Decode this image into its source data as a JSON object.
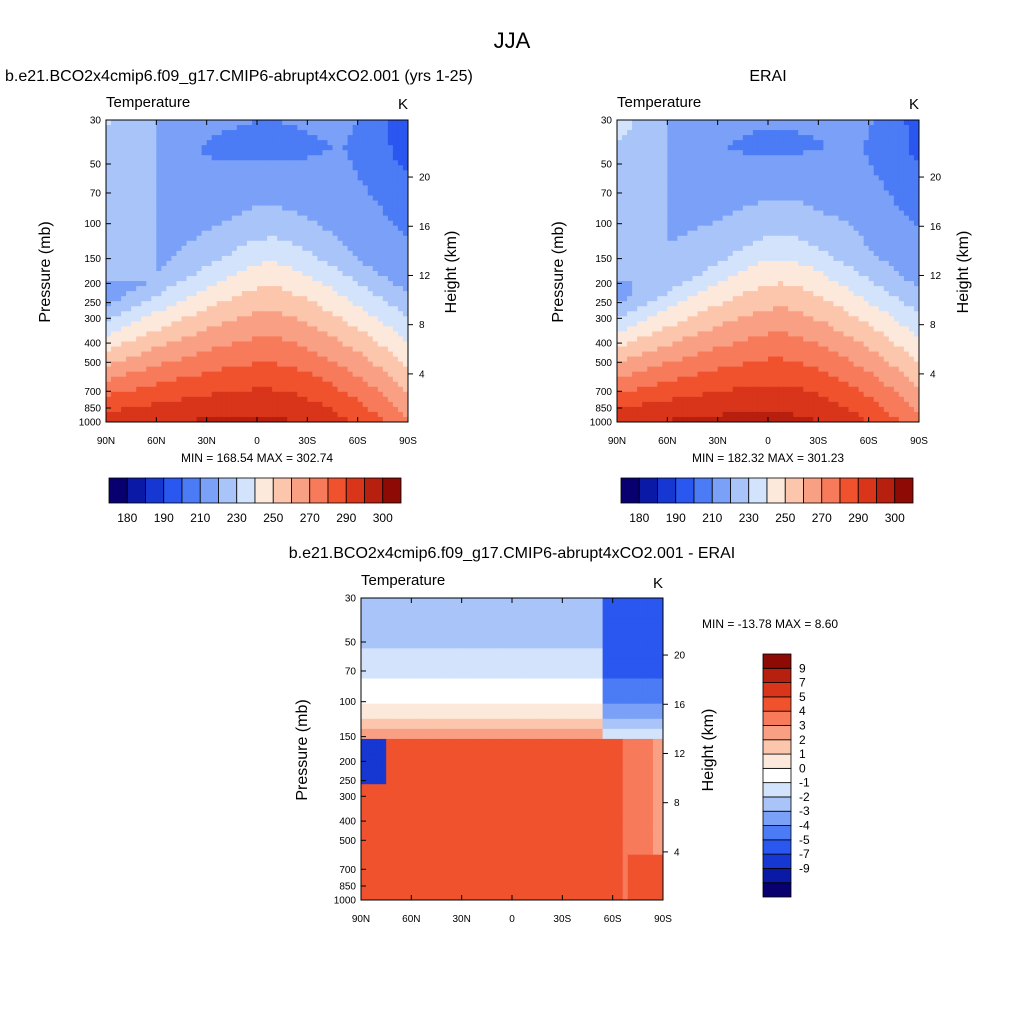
{
  "figure": {
    "title": "JJA"
  },
  "colors": {
    "palette": [
      "#08006e",
      "#0b1aa6",
      "#1637d2",
      "#2a57ef",
      "#4c7bf6",
      "#7aa1f7",
      "#a9c4f8",
      "#d2e3fb",
      "#fde9dc",
      "#fcc6ad",
      "#f9a084",
      "#f77a5a",
      "#f0522e",
      "#d8351a",
      "#b71f0f",
      "#8d0a05"
    ],
    "diff_palette": [
      "#08006e",
      "#0b1aa6",
      "#1637d2",
      "#2a57ef",
      "#4c7bf6",
      "#7aa1f7",
      "#a9c4f8",
      "#d2e3fb",
      "#ffffff",
      "#fde9dc",
      "#fcc6ad",
      "#f9a084",
      "#f77a5a",
      "#f0522e",
      "#d8351a",
      "#b71f0f",
      "#8d0a05"
    ]
  },
  "chart_data": [
    {
      "type": "heatmap",
      "title": "b.e21.BCO2x4cmip6.f09_g17.CMIP6-abrupt4xCO2.001 (yrs 1-25)",
      "variable": "Temperature",
      "units": "K",
      "xlabel": "",
      "ylabel": "Pressure (mb)",
      "y2label": "Height (km)",
      "x_ticks": [
        "90N",
        "60N",
        "30N",
        "0",
        "30S",
        "60S",
        "90S"
      ],
      "y_ticks": [
        "30",
        "50",
        "70",
        "100",
        "150",
        "200",
        "250",
        "300",
        "400",
        "500",
        "700",
        "850",
        "1000"
      ],
      "y2_ticks": [
        "20",
        "16",
        "12",
        "8",
        "4"
      ],
      "y_scale": "log",
      "stats": "MIN = 168.54  MAX = 302.74",
      "colorbar_labels": [
        "180",
        "190",
        "210",
        "230",
        "250",
        "270",
        "290",
        "300"
      ],
      "min": 168.54,
      "max": 302.74
    },
    {
      "type": "heatmap",
      "title": "ERAI",
      "variable": "Temperature",
      "units": "K",
      "xlabel": "",
      "ylabel": "Pressure (mb)",
      "y2label": "Height (km)",
      "x_ticks": [
        "90N",
        "60N",
        "30N",
        "0",
        "30S",
        "60S",
        "90S"
      ],
      "y_ticks": [
        "30",
        "50",
        "70",
        "100",
        "150",
        "200",
        "250",
        "300",
        "400",
        "500",
        "700",
        "850",
        "1000"
      ],
      "y2_ticks": [
        "20",
        "16",
        "12",
        "8",
        "4"
      ],
      "y_scale": "log",
      "stats": "MIN = 182.32  MAX = 301.23",
      "colorbar_labels": [
        "180",
        "190",
        "210",
        "230",
        "250",
        "270",
        "290",
        "300"
      ],
      "min": 182.32,
      "max": 301.23
    },
    {
      "type": "heatmap",
      "title": "b.e21.BCO2x4cmip6.f09_g17.CMIP6-abrupt4xCO2.001 - ERAI",
      "variable": "Temperature",
      "units": "K",
      "xlabel": "",
      "ylabel": "Pressure (mb)",
      "y2label": "Height (km)",
      "x_ticks": [
        "90N",
        "60N",
        "30N",
        "0",
        "30S",
        "60S",
        "90S"
      ],
      "y_ticks": [
        "30",
        "50",
        "70",
        "100",
        "150",
        "200",
        "250",
        "300",
        "400",
        "500",
        "700",
        "850",
        "1000"
      ],
      "y2_ticks": [
        "20",
        "16",
        "12",
        "8",
        "4"
      ],
      "y_scale": "log",
      "stats": "MIN = -13.78  MAX =   8.60",
      "colorbar_labels": [
        "9",
        "7",
        "5",
        "4",
        "3",
        "2",
        "1",
        "0",
        "-1",
        "-2",
        "-3",
        "-4",
        "-5",
        "-7",
        "-9"
      ],
      "min": -13.78,
      "max": 8.6
    }
  ]
}
